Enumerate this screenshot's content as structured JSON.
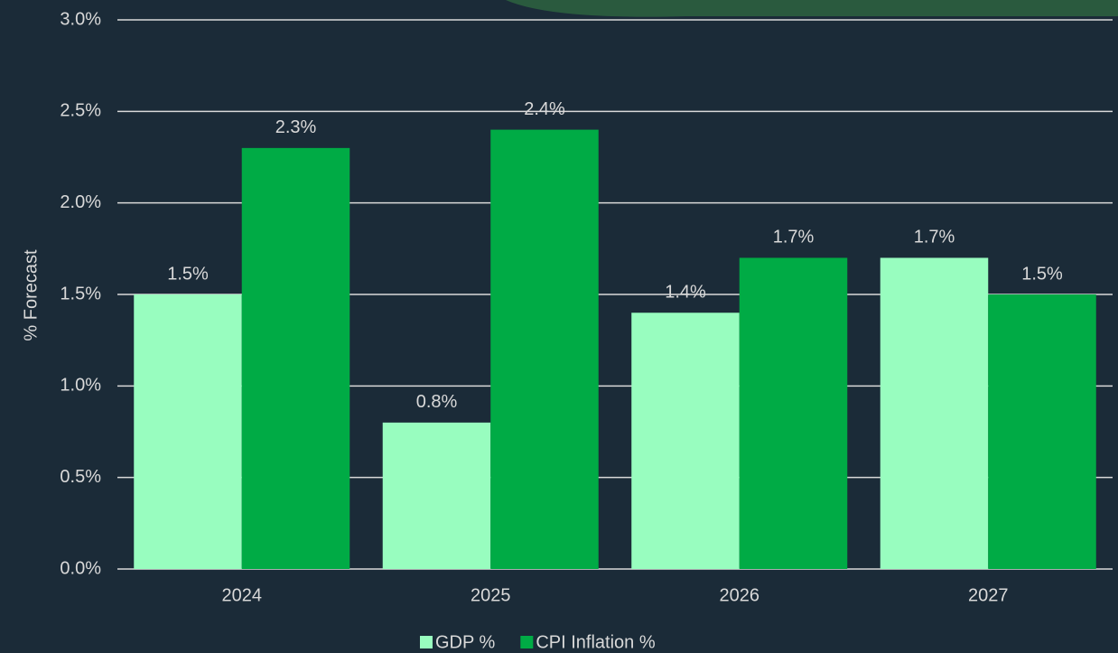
{
  "chart_data": {
    "type": "bar",
    "y_axis_label": "% Forecast",
    "categories": [
      "2024",
      "2025",
      "2026",
      "2027"
    ],
    "series": [
      {
        "name": "GDP %",
        "color": "#98fdbf",
        "values": [
          1.5,
          0.8,
          1.4,
          1.7
        ],
        "value_labels": [
          "1.5%",
          "0.8%",
          "1.4%",
          "1.7%"
        ]
      },
      {
        "name": "CPI Inflation %",
        "color": "#00ab45",
        "values": [
          2.3,
          2.4,
          1.7,
          1.5
        ],
        "value_labels": [
          "2.3%",
          "2.4%",
          "1.7%",
          "1.5%"
        ]
      }
    ],
    "ylim": [
      0,
      3
    ],
    "yticks": [
      {
        "value": 0,
        "label": "0.0%"
      },
      {
        "value": 0.5,
        "label": "0.5%"
      },
      {
        "value": 1,
        "label": "1.0%"
      },
      {
        "value": 1.5,
        "label": "1.5%"
      },
      {
        "value": 2,
        "label": "2.0%"
      },
      {
        "value": 2.5,
        "label": "2.5%"
      },
      {
        "value": 3,
        "label": "3.0%"
      }
    ],
    "grid": true,
    "legend": "bottom"
  }
}
